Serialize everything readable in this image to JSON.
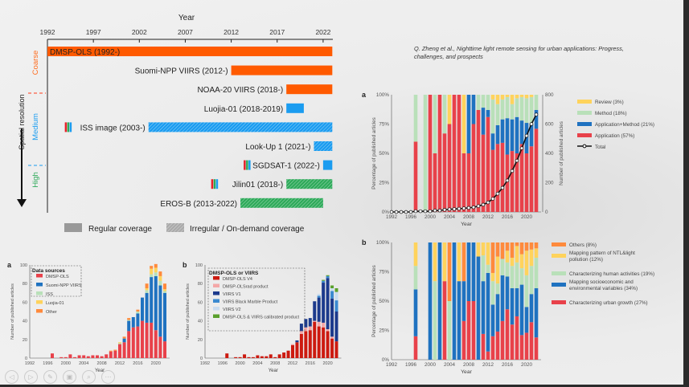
{
  "reference": "Q. Zheng et al., Nighttime light remote sensing for urban applications: Progress, challenges, and prospects",
  "timeline": {
    "xlabel": "Year",
    "ylabel": "Spatial resolution",
    "ticks": [
      1992,
      1997,
      2002,
      2007,
      2012,
      2017,
      2022
    ],
    "classes": [
      {
        "label": "Coarse",
        "color": "#ff6a1a"
      },
      {
        "label": "Medium",
        "color": "#1a9cf0"
      },
      {
        "label": "High",
        "color": "#2eaa5a"
      }
    ],
    "sensors": [
      {
        "label": "DMSP-OLS (1992-)",
        "start": 1992,
        "end": 2023,
        "color": "#ff5a00",
        "hatched": false,
        "rgb": false
      },
      {
        "label": "Suomi-NPP VIIRS (2012-)",
        "start": 2012,
        "end": 2023,
        "color": "#ff5a00",
        "hatched": false,
        "rgb": false
      },
      {
        "label": "NOAA-20 VIIRS (2018-)",
        "start": 2018,
        "end": 2023,
        "color": "#ff5a00",
        "hatched": false,
        "rgb": false
      },
      {
        "label": "Luojia-01 (2018-2019)",
        "start": 2018,
        "end": 2019.9,
        "color": "#1a9cf0",
        "hatched": false,
        "rgb": false
      },
      {
        "label": "ISS image (2003-)",
        "start": 2003,
        "end": 2023,
        "color": "#1a9cf0",
        "hatched": true,
        "rgb": true
      },
      {
        "label": "Look-Up 1 (2021-)",
        "start": 2021,
        "end": 2023,
        "color": "#1a9cf0",
        "hatched": true,
        "rgb": false
      },
      {
        "label": "SGDSAT-1 (2022-)",
        "start": 2022,
        "end": 2023,
        "color": "#1a9cf0",
        "hatched": false,
        "rgb": true
      },
      {
        "label": "Jilin01 (2018-)",
        "start": 2018,
        "end": 2023,
        "color": "#2eaa5a",
        "hatched": true,
        "rgb": true
      },
      {
        "label": "EROS-B (2013-2022)",
        "start": 2013,
        "end": 2022,
        "color": "#2eaa5a",
        "hatched": true,
        "rgb": false
      }
    ],
    "legend": [
      "Regular coverage",
      "Irregular / On-demand coverage"
    ]
  },
  "chart_data": [
    {
      "id": "top-a",
      "panel": "a",
      "type": "bar",
      "stacked": true,
      "xlabel": "Year",
      "ylabel": "Percentage of published articles",
      "y2label": "Number of published articles",
      "ylim": [
        0,
        100
      ],
      "y2lim": [
        0,
        800
      ],
      "yticks": [
        "0%",
        "25%",
        "50%",
        "75%",
        "100%"
      ],
      "y2ticks": [
        "0",
        "200",
        "400",
        "600",
        "800"
      ],
      "xticks": [
        1992,
        1996,
        2000,
        2004,
        2008,
        2012,
        2016,
        2020
      ],
      "series": [
        {
          "name": "Application (57%)",
          "color": "#e8414a"
        },
        {
          "name": "Application+Method (21%)",
          "color": "#1f72c0"
        },
        {
          "name": "Method (18%)",
          "color": "#b9e0b9"
        },
        {
          "name": "Review (3%)",
          "color": "#ffd35c"
        }
      ],
      "line": {
        "name": "Total",
        "x": [
          1992,
          1993,
          1994,
          1995,
          1996,
          1997,
          1998,
          1999,
          2000,
          2001,
          2002,
          2003,
          2004,
          2005,
          2006,
          2007,
          2008,
          2009,
          2010,
          2011,
          2012,
          2013,
          2014,
          2015,
          2016,
          2017,
          2018,
          2019,
          2020,
          2021,
          2022
        ],
        "values": [
          0,
          0,
          0,
          0,
          0,
          5,
          5,
          5,
          5,
          10,
          10,
          15,
          18,
          20,
          22,
          25,
          28,
          32,
          40,
          50,
          65,
          90,
          125,
          165,
          215,
          280,
          350,
          435,
          520,
          600,
          665
        ]
      },
      "data": {
        "1997": [
          60,
          0,
          40,
          0
        ],
        "1999": [
          0,
          0,
          100,
          0
        ],
        "2000": [
          100,
          0,
          0,
          0
        ],
        "2001": [
          50,
          0,
          50,
          0
        ],
        "2002": [
          100,
          0,
          0,
          0
        ],
        "2003": [
          67,
          0,
          33,
          0
        ],
        "2004": [
          75,
          0,
          0,
          25
        ],
        "2005": [
          100,
          0,
          0,
          0
        ],
        "2006": [
          100,
          0,
          0,
          0
        ],
        "2007": [
          50,
          0,
          0,
          50
        ],
        "2008": [
          50,
          50,
          0,
          0
        ],
        "2009": [
          75,
          25,
          0,
          0
        ],
        "2010": [
          87,
          0,
          13,
          0
        ],
        "2011": [
          66,
          23,
          11,
          0
        ],
        "2012": [
          81,
          6,
          13,
          0
        ],
        "2013": [
          53,
          14,
          29,
          4
        ],
        "2014": [
          58,
          16,
          18,
          8
        ],
        "2015": [
          59,
          20,
          17,
          4
        ],
        "2016": [
          49,
          31,
          18,
          2
        ],
        "2017": [
          52,
          27,
          13,
          8
        ],
        "2018": [
          50,
          31,
          16,
          3
        ],
        "2019": [
          58,
          20,
          20,
          2
        ],
        "2020": [
          50,
          26,
          21,
          3
        ],
        "2021": [
          56,
          19,
          23,
          2
        ],
        "2022": [
          71,
          16,
          13,
          0
        ]
      }
    },
    {
      "id": "top-b",
      "panel": "b",
      "type": "bar",
      "stacked": true,
      "xlabel": "Year",
      "ylabel": "Percentage of published articles",
      "ylim": [
        0,
        100
      ],
      "yticks": [
        "0%",
        "25%",
        "50%",
        "75%",
        "100%"
      ],
      "xticks": [
        1992,
        1996,
        2000,
        2004,
        2008,
        2012,
        2016,
        2020
      ],
      "series": [
        {
          "name": "Characterizing urban growth (27%)",
          "color": "#e8414a"
        },
        {
          "name": "Mapping socioeconomic and environmental variables (34%)",
          "color": "#1f72c0"
        },
        {
          "name": "Characterizing human activities (19%)",
          "color": "#b9e0b9"
        },
        {
          "name": "Mapping pattern of NTL&light pollution (12%)",
          "color": "#ffd35c"
        },
        {
          "name": "Others (8%)",
          "color": "#ff8a3c"
        }
      ],
      "data": {
        "1997": [
          20,
          40,
          20,
          20,
          0
        ],
        "2000": [
          0,
          100,
          0,
          0,
          0
        ],
        "2001": [
          0,
          0,
          67,
          33,
          0
        ],
        "2002": [
          0,
          100,
          0,
          0,
          0
        ],
        "2003": [
          67,
          0,
          0,
          33,
          0
        ],
        "2004": [
          0,
          0,
          50,
          0,
          50
        ],
        "2005": [
          0,
          100,
          0,
          0,
          0
        ],
        "2006": [
          0,
          67,
          0,
          33,
          0
        ],
        "2007": [
          33,
          34,
          0,
          0,
          33
        ],
        "2008": [
          50,
          50,
          0,
          0,
          0
        ],
        "2009": [
          50,
          50,
          0,
          0,
          0
        ],
        "2010": [
          0,
          88,
          0,
          12,
          0
        ],
        "2011": [
          22,
          45,
          22,
          11,
          0
        ],
        "2012": [
          7,
          67,
          7,
          19,
          0
        ],
        "2013": [
          20,
          27,
          20,
          7,
          26
        ],
        "2014": [
          24,
          32,
          9,
          23,
          12
        ],
        "2015": [
          33,
          39,
          14,
          0,
          14
        ],
        "2016": [
          43,
          28,
          12,
          10,
          7
        ],
        "2017": [
          30,
          31,
          19,
          7,
          13
        ],
        "2018": [
          37,
          24,
          22,
          14,
          3
        ],
        "2019": [
          21,
          43,
          14,
          12,
          10
        ],
        "2020": [
          23,
          22,
          27,
          21,
          7
        ],
        "2021": [
          32,
          24,
          24,
          14,
          6
        ],
        "2022": [
          19,
          42,
          26,
          8,
          5
        ]
      }
    },
    {
      "id": "bot-a",
      "panel": "a",
      "type": "bar",
      "stacked": true,
      "title": "Data sources",
      "xlabel": "Year",
      "ylabel": "Number of published articles",
      "ylim": [
        0,
        100
      ],
      "yticks": [
        "0",
        "20",
        "40",
        "60",
        "80",
        "100"
      ],
      "xticks": [
        1992,
        1996,
        2000,
        2004,
        2008,
        2012,
        2016,
        2020
      ],
      "series": [
        {
          "name": "DMSP-OLS",
          "color": "#e8414a"
        },
        {
          "name": "Suomi-NPP VIIRS",
          "color": "#1f72c0"
        },
        {
          "name": "ISS",
          "color": "#b9e0b9"
        },
        {
          "name": "Luojia-01",
          "color": "#ffd35c"
        },
        {
          "name": "Other",
          "color": "#ff8a3c"
        }
      ],
      "data": {
        "1997": [
          5,
          0,
          0,
          0,
          0
        ],
        "1999": [
          1,
          0,
          0,
          0,
          0
        ],
        "2000": [
          1,
          0,
          0,
          0,
          0
        ],
        "2001": [
          4,
          0,
          0,
          0,
          0
        ],
        "2002": [
          1,
          0,
          0,
          0,
          0
        ],
        "2003": [
          3,
          0,
          0,
          0,
          0
        ],
        "2004": [
          3,
          0,
          0,
          0,
          0
        ],
        "2005": [
          2,
          0,
          0,
          0,
          0
        ],
        "2006": [
          3,
          0,
          0,
          0,
          0
        ],
        "2007": [
          3,
          0,
          0,
          0,
          0
        ],
        "2008": [
          2,
          0,
          0,
          0,
          0
        ],
        "2009": [
          4,
          0,
          0,
          0,
          0
        ],
        "2010": [
          7,
          0,
          0,
          0,
          1
        ],
        "2011": [
          8,
          0,
          0,
          0,
          1
        ],
        "2012": [
          15,
          0,
          1,
          1,
          0
        ],
        "2013": [
          17,
          4,
          0,
          0,
          2
        ],
        "2014": [
          29,
          11,
          1,
          0,
          2
        ],
        "2015": [
          33,
          11,
          0,
          0,
          0
        ],
        "2016": [
          34,
          14,
          2,
          0,
          2
        ],
        "2017": [
          40,
          25,
          0,
          0,
          0
        ],
        "2018": [
          38,
          32,
          3,
          2,
          5
        ],
        "2019": [
          38,
          49,
          3,
          6,
          3
        ],
        "2020": [
          30,
          58,
          4,
          5,
          4
        ],
        "2021": [
          23,
          55,
          5,
          5,
          5
        ],
        "2022": [
          18,
          52,
          2,
          2,
          6
        ]
      }
    },
    {
      "id": "bot-b",
      "panel": "b",
      "type": "bar",
      "stacked": true,
      "title": "DMSP-OLS or VIIRS",
      "xlabel": "Year",
      "ylabel": "Number of published articles",
      "ylim": [
        0,
        100
      ],
      "yticks": [
        "0",
        "20",
        "40",
        "60",
        "80",
        "100"
      ],
      "xticks": [
        1992,
        1996,
        2000,
        2004,
        2008,
        2012,
        2016,
        2020
      ],
      "series": [
        {
          "name": "DMSP-OLS V4",
          "color": "#cc1a10"
        },
        {
          "name": "DMSP-OLSrad product",
          "color": "#f4a7a7"
        },
        {
          "name": "VIIRS V1",
          "color": "#1c3a8c"
        },
        {
          "name": "VIIRS Black Marble Product",
          "color": "#3b8ad0"
        },
        {
          "name": "VIIRS V2",
          "color": "#c9dcf0"
        },
        {
          "name": "DMSP-OLS & VIIRS calibrated product",
          "color": "#5aa02c"
        }
      ],
      "data": {
        "1997": [
          5,
          0,
          0,
          0,
          0,
          0
        ],
        "1999": [
          1,
          0,
          0,
          0,
          0,
          0
        ],
        "2000": [
          1,
          0,
          0,
          0,
          0,
          0
        ],
        "2001": [
          4,
          0,
          0,
          0,
          0,
          0
        ],
        "2002": [
          1,
          0,
          0,
          0,
          0,
          0
        ],
        "2003": [
          1,
          0,
          0,
          0,
          0,
          0
        ],
        "2004": [
          3,
          0,
          0,
          0,
          0,
          0
        ],
        "2005": [
          2,
          0,
          0,
          0,
          0,
          0
        ],
        "2006": [
          2,
          0,
          0,
          0,
          0,
          0
        ],
        "2007": [
          4,
          0,
          0,
          0,
          0,
          0
        ],
        "2008": [
          1,
          0,
          0,
          0,
          0,
          0
        ],
        "2009": [
          4,
          0,
          0,
          0,
          0,
          0
        ],
        "2010": [
          6,
          0,
          0,
          0,
          0,
          0
        ],
        "2011": [
          8,
          0,
          0,
          0,
          0,
          0
        ],
        "2012": [
          14,
          1,
          0,
          0,
          0,
          0
        ],
        "2013": [
          17,
          0,
          2,
          0,
          0,
          0
        ],
        "2014": [
          26,
          3,
          8,
          0,
          0,
          0
        ],
        "2015": [
          29,
          4,
          9,
          0,
          0,
          0
        ],
        "2016": [
          30,
          4,
          9,
          0,
          0,
          0
        ],
        "2017": [
          39,
          1,
          21,
          0,
          0,
          0
        ],
        "2018": [
          34,
          5,
          26,
          2,
          2,
          0
        ],
        "2019": [
          33,
          5,
          43,
          2,
          0,
          1
        ],
        "2020": [
          29,
          2,
          55,
          2,
          0,
          1
        ],
        "2021": [
          21,
          2,
          41,
          8,
          3,
          3
        ],
        "2022": [
          18,
          0,
          32,
          12,
          9,
          4
        ]
      }
    }
  ],
  "nav": [
    "back",
    "forward",
    "pen",
    "slides",
    "zoom",
    "more"
  ]
}
